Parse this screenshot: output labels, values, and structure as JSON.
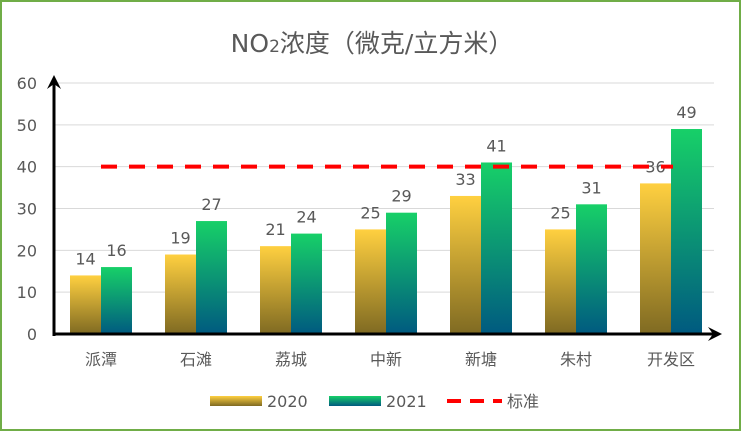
{
  "chart_data": {
    "type": "bar",
    "title": "NO2浓度（微克/立方米）",
    "title_main": "NO",
    "title_sub": "2",
    "title_rest": "浓度（微克/立方米）",
    "categories": [
      "派潭",
      "石滩",
      "荔城",
      "中新",
      "新塘",
      "朱村",
      "开发区"
    ],
    "series": [
      {
        "name": "2020",
        "values": [
          14,
          19,
          21,
          25,
          33,
          25,
          36
        ],
        "color_top": "#FFD040",
        "color_bottom": "#7F6A22"
      },
      {
        "name": "2021",
        "values": [
          16,
          27,
          24,
          29,
          41,
          31,
          49
        ],
        "color_top": "#17D068",
        "color_bottom": "#005A80"
      }
    ],
    "reference_line": {
      "name": "标准",
      "value": 40,
      "color": "#FF0000",
      "style": "dashed"
    },
    "ylim": [
      0,
      60
    ],
    "yticks": [
      0,
      10,
      20,
      30,
      40,
      50,
      60
    ],
    "grid": true,
    "data_labels": true,
    "legend_position": "bottom",
    "border_color": "#70AD47"
  }
}
